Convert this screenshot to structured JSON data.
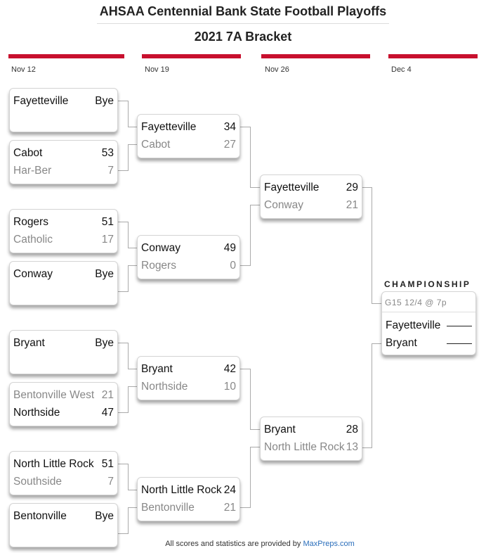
{
  "title": "AHSAA Centennial Bank State Football Playoffs",
  "subtitle": "2021 7A Bracket",
  "accent_color": "#c8102e",
  "rounds": [
    "Nov 12",
    "Nov 19",
    "Nov 26",
    "Dec 4"
  ],
  "games": [
    [
      [
        {
          "team": "Fayetteville",
          "score": "Bye",
          "win": true
        },
        {
          "team": "",
          "score": "",
          "win": false
        }
      ],
      [
        {
          "team": "Cabot",
          "score": "53",
          "win": true
        },
        {
          "team": "Har-Ber",
          "score": "7",
          "win": false
        }
      ],
      [
        {
          "team": "Rogers",
          "score": "51",
          "win": true
        },
        {
          "team": "Catholic",
          "score": "17",
          "win": false
        }
      ],
      [
        {
          "team": "Conway",
          "score": "Bye",
          "win": true
        },
        {
          "team": "",
          "score": "",
          "win": false
        }
      ],
      [
        {
          "team": "Bryant",
          "score": "Bye",
          "win": true
        },
        {
          "team": "",
          "score": "",
          "win": false
        }
      ],
      [
        {
          "team": "Bentonville West",
          "score": "21",
          "win": false
        },
        {
          "team": "Northside",
          "score": "47",
          "win": true
        }
      ],
      [
        {
          "team": "North Little Rock",
          "score": "51",
          "win": true
        },
        {
          "team": "Southside",
          "score": "7",
          "win": false
        }
      ],
      [
        {
          "team": "Bentonville",
          "score": "Bye",
          "win": true
        },
        {
          "team": "",
          "score": "",
          "win": false
        }
      ]
    ],
    [
      [
        {
          "team": "Fayetteville",
          "score": "34",
          "win": true
        },
        {
          "team": "Cabot",
          "score": "27",
          "win": false
        }
      ],
      [
        {
          "team": "Conway",
          "score": "49",
          "win": true
        },
        {
          "team": "Rogers",
          "score": "0",
          "win": false
        }
      ],
      [
        {
          "team": "Bryant",
          "score": "42",
          "win": true
        },
        {
          "team": "Northside",
          "score": "10",
          "win": false
        }
      ],
      [
        {
          "team": "North Little Rock",
          "score": "24",
          "win": true
        },
        {
          "team": "Bentonville",
          "score": "21",
          "win": false
        }
      ]
    ],
    [
      [
        {
          "team": "Fayetteville",
          "score": "29",
          "win": true
        },
        {
          "team": "Conway",
          "score": "21",
          "win": false
        }
      ],
      [
        {
          "team": "Bryant",
          "score": "28",
          "win": true
        },
        {
          "team": "North Little Rock",
          "score": "13",
          "win": false
        }
      ]
    ]
  ],
  "championship": {
    "label": "CHAMPIONSHIP",
    "info": "G15 12/4 @ 7p",
    "teams": [
      "Fayetteville",
      "Bryant"
    ]
  },
  "footer": {
    "text": "All scores and statistics are provided by ",
    "link": "MaxPreps.com"
  }
}
